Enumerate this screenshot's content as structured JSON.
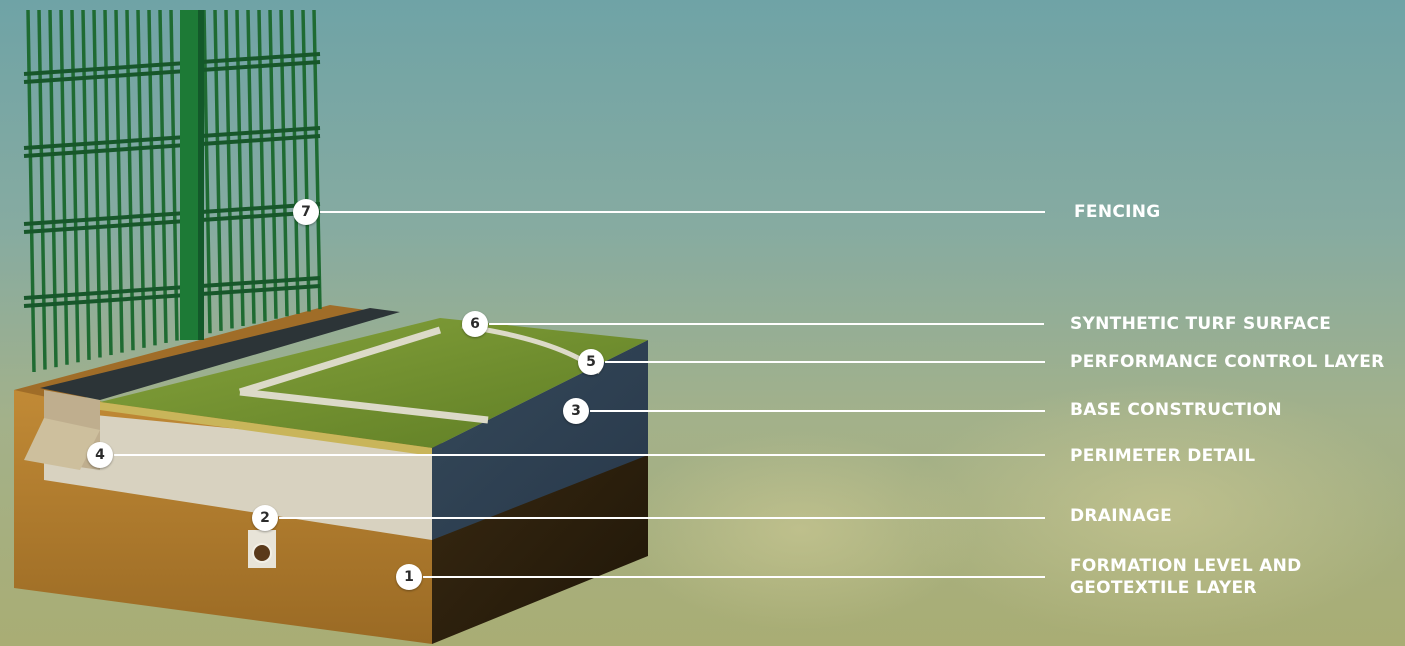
{
  "callouts": [
    {
      "number": "7",
      "label": "FENCING"
    },
    {
      "number": "6",
      "label": "SYNTHETIC TURF SURFACE"
    },
    {
      "number": "5",
      "label": "PERFORMANCE CONTROL LAYER"
    },
    {
      "number": "3",
      "label": "BASE CONSTRUCTION"
    },
    {
      "number": "4",
      "label": "PERIMETER DETAIL"
    },
    {
      "number": "2",
      "label": "DRAINAGE"
    },
    {
      "number": "1",
      "label": "FORMATION LEVEL AND",
      "label_line2": "GEOTEXTILE LAYER"
    }
  ],
  "colors": {
    "sky_top": "#6fa3a6",
    "turf": "#6f8f2e",
    "fence": "#1f6b32",
    "soil": "#b07a2c",
    "base_aggregate": "#d6cfbc",
    "label_text": "#ffffff"
  }
}
